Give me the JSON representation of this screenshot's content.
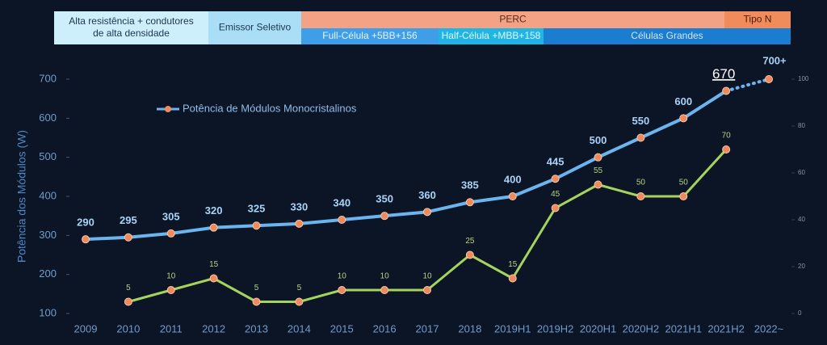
{
  "banner": {
    "cells": [
      {
        "lines": [
          "Alta resistência + condutores",
          "de alta densidade"
        ]
      },
      {
        "lines": [
          "Emissor Seletivo"
        ]
      },
      {
        "lines": [
          "PERC"
        ]
      },
      {
        "lines": [
          "Tipo N"
        ]
      },
      {
        "lines": [
          "Full-Célula +5BB+156"
        ]
      },
      {
        "lines": [
          "Half-Célula +MBB+158"
        ]
      },
      {
        "lines": [
          "Células Grandes"
        ]
      }
    ]
  },
  "chart_data": {
    "type": "line",
    "y_label": "Potência dos Módulos  (W)",
    "categories": [
      "2009",
      "2010",
      "2011",
      "2012",
      "2013",
      "2014",
      "2015",
      "2016",
      "2017",
      "2018",
      "2019H1",
      "2019H2",
      "2020H1",
      "2020H2",
      "2021H1",
      "2021H2",
      "2022~"
    ],
    "series": [
      {
        "name": "Potência de Módulos Monocristalinos",
        "color": "#6cb4ee",
        "values": [
          290,
          295,
          305,
          320,
          325,
          330,
          340,
          350,
          360,
          385,
          400,
          445,
          500,
          550,
          600,
          670,
          700
        ],
        "value_labels": [
          "290",
          "295",
          "305",
          "320",
          "325",
          "330",
          "340",
          "350",
          "360",
          "385",
          "400",
          "445",
          "500",
          "550",
          "600",
          "670",
          "700+"
        ]
      },
      {
        "color": "#a4d45c",
        "axis": "y2",
        "values": [
          null,
          5,
          10,
          15,
          5,
          5,
          10,
          10,
          10,
          25,
          15,
          45,
          55,
          50,
          50,
          70,
          null
        ]
      }
    ],
    "ylim": [
      100,
      700
    ],
    "yticks": [
      100,
      200,
      300,
      400,
      500,
      600,
      700
    ],
    "y2lim": [
      0,
      100
    ],
    "y2ticks": [
      0,
      20,
      40,
      60,
      80,
      100
    ],
    "marker_color": "#ef8a5e"
  }
}
